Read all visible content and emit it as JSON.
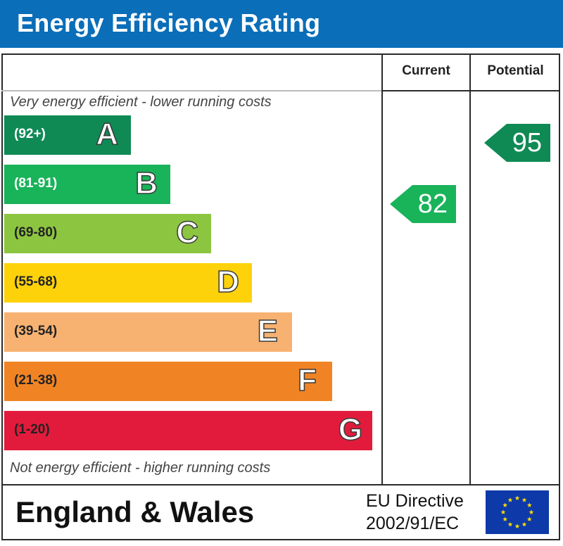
{
  "header": {
    "title": "Energy Efficiency Rating"
  },
  "columns": {
    "current": "Current",
    "potential": "Potential"
  },
  "captions": {
    "top": "Very energy efficient - lower running costs",
    "bottom": "Not energy efficient - higher running costs"
  },
  "bands": [
    {
      "range": "(92+)",
      "letter": "A",
      "color": "#0f8a55",
      "range_color": "#ffffff"
    },
    {
      "range": "(81-91)",
      "letter": "B",
      "color": "#19b35a",
      "range_color": "#ffffff"
    },
    {
      "range": "(69-80)",
      "letter": "C",
      "color": "#8cc540",
      "range_color": "#222222"
    },
    {
      "range": "(55-68)",
      "letter": "D",
      "color": "#fdd20a",
      "range_color": "#222222"
    },
    {
      "range": "(39-54)",
      "letter": "E",
      "color": "#f7b271",
      "range_color": "#222222"
    },
    {
      "range": "(21-38)",
      "letter": "F",
      "color": "#f08424",
      "range_color": "#222222"
    },
    {
      "range": "(1-20)",
      "letter": "G",
      "color": "#e21b3c",
      "range_color": "#222222"
    }
  ],
  "ratings": {
    "current": {
      "value": "82",
      "color": "#19b35a"
    },
    "potential": {
      "value": "95",
      "color": "#0f8a55"
    }
  },
  "footer": {
    "region": "England & Wales",
    "directive_line1": "EU Directive",
    "directive_line2": "2002/91/EC",
    "flag_color": "#0d3aa8",
    "star_color": "#ffdd00"
  }
}
